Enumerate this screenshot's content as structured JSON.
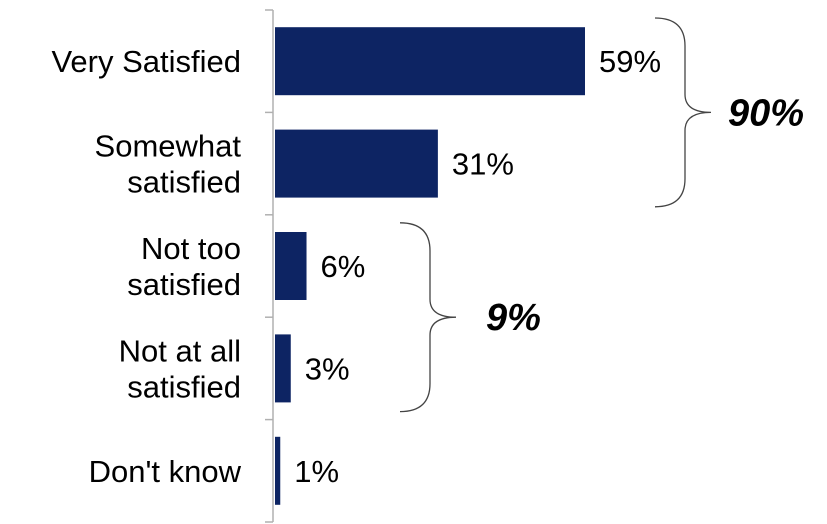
{
  "chart_data": {
    "type": "bar",
    "orientation": "horizontal",
    "categories": [
      [
        "Very Satisfied"
      ],
      [
        "Somewhat",
        "satisfied"
      ],
      [
        "Not too",
        "satisfied"
      ],
      [
        "Not at all",
        "satisfied"
      ],
      [
        "Don't know"
      ]
    ],
    "values": [
      59,
      31,
      6,
      3,
      1
    ],
    "value_labels": [
      "59%",
      "31%",
      "6%",
      "3%",
      "1%"
    ],
    "xlim": [
      0,
      100
    ],
    "bar_color": "#0d2463",
    "groups": [
      {
        "label": "90%",
        "range": [
          0,
          1
        ]
      },
      {
        "label": "9%",
        "range": [
          2,
          3
        ]
      }
    ],
    "grid": false,
    "legend": "none"
  }
}
